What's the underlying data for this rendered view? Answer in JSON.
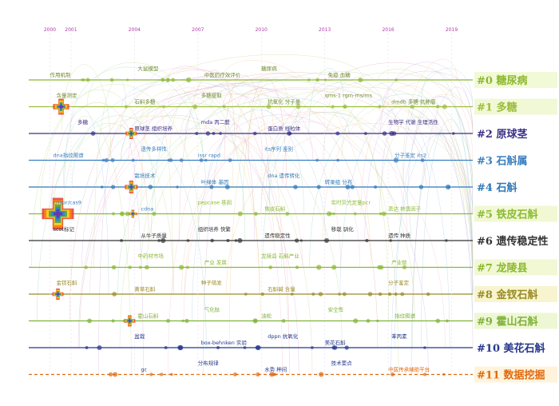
{
  "chart_data": {
    "type": "timeline",
    "years": [
      "2000",
      "2001",
      "2004",
      "2007",
      "2010",
      "2013",
      "2016",
      "2019"
    ],
    "clusters": [
      {
        "id": "#0",
        "label": "糖尿病",
        "color": "#8bb82f",
        "bg": "#f2f9d6"
      },
      {
        "id": "#1",
        "label": "多糖",
        "color": "#9cbe3c",
        "bg": "#f1f8d6"
      },
      {
        "id": "#2",
        "label": "原球茎",
        "color": "#3b2f86",
        "bg": "#ffffff"
      },
      {
        "id": "#3",
        "label": "石斛属",
        "color": "#3a7fbf",
        "bg": "#ffffff"
      },
      {
        "id": "#4",
        "label": "石斛",
        "color": "#2f78b7",
        "bg": "#ffffff"
      },
      {
        "id": "#5",
        "label": "铁皮石斛",
        "color": "#8bbb35",
        "bg": "#f1f8d3"
      },
      {
        "id": "#6",
        "label": "遗传稳定性",
        "color": "#333333",
        "bg": "#ffffff"
      },
      {
        "id": "#7",
        "label": "龙陵县",
        "color": "#8bb82f",
        "bg": "#f1f8d3"
      },
      {
        "id": "#8",
        "label": "金钗石斛",
        "color": "#9a8a24",
        "bg": "#f7f4cf"
      },
      {
        "id": "#9",
        "label": "霍山石斛",
        "color": "#7fb23a",
        "bg": "#eef7d4"
      },
      {
        "id": "#10",
        "label": "美花石斛",
        "color": "#25378b",
        "bg": "#ffffff"
      },
      {
        "id": "#11",
        "label": "数据挖掘",
        "color": "#e06a10",
        "bg": "#fff3dc"
      }
    ],
    "keywords": [
      {
        "row": 0,
        "x": "2000",
        "t": "作用机制",
        "c": "#6b8b2b"
      },
      {
        "row": 0,
        "x": "2004",
        "t": "大鼠模型",
        "c": "#6b8b2b"
      },
      {
        "row": 0,
        "x": "2007",
        "t": "中医药疗效评价",
        "c": "#6b8b2b"
      },
      {
        "row": 0,
        "x": "2010",
        "t": "糖尿病",
        "c": "#6b8b2b"
      },
      {
        "row": 0,
        "x": "2013",
        "t": "免疫 血糖",
        "c": "#6b8b2b"
      },
      {
        "row": 1,
        "x": "2000",
        "t": "含量测定",
        "c": "#6b8b2b"
      },
      {
        "row": 1,
        "x": "2004",
        "t": "石斛多糖",
        "c": "#6b8b2b"
      },
      {
        "row": 1,
        "x": "2007",
        "t": "多糖提取",
        "c": "#6b8b2b"
      },
      {
        "row": 1,
        "x": "2010",
        "t": "抗氧化 分子量",
        "c": "#6b8b2b"
      },
      {
        "row": 1,
        "x": "2013",
        "t": "qms-1 rgm-ms/ms",
        "c": "#6b8b2b"
      },
      {
        "row": 1,
        "x": "2016",
        "t": "dmdb 多糖 抗肿瘤",
        "c": "#6b8b2b"
      },
      {
        "row": 2,
        "x": "2001",
        "t": "多糖",
        "c": "#3b2f86"
      },
      {
        "row": 2,
        "x": "2004",
        "t": "原球茎 组织培养",
        "c": "#3b2f86"
      },
      {
        "row": 2,
        "x": "2007",
        "t": "mda 丙二醛",
        "c": "#3b2f86"
      },
      {
        "row": 2,
        "x": "2010",
        "t": "蛋白质 线粒体",
        "c": "#3b2f86"
      },
      {
        "row": 2,
        "x": "2016",
        "t": "生物学 代谢 生理活性",
        "c": "#3b2f86"
      },
      {
        "row": 3,
        "x": "2000",
        "t": "dna指纹图谱",
        "c": "#3a7fbf"
      },
      {
        "row": 3,
        "x": "2004",
        "t": "遗传多样性",
        "c": "#3a7fbf"
      },
      {
        "row": 3,
        "x": "2007",
        "t": "issr rapd",
        "c": "#3a7fbf"
      },
      {
        "row": 3,
        "x": "2010",
        "t": "its序列 鉴别",
        "c": "#3a7fbf"
      },
      {
        "row": 3,
        "x": "2016",
        "t": "分子鉴定 its2",
        "c": "#3a7fbf"
      },
      {
        "row": 4,
        "x": "2004",
        "t": "栽培技术",
        "c": "#2f78b7"
      },
      {
        "row": 4,
        "x": "2007",
        "t": "叶绿体 基因",
        "c": "#2f78b7"
      },
      {
        "row": 4,
        "x": "2010",
        "t": "dna 遗传转化",
        "c": "#2f78b7"
      },
      {
        "row": 4,
        "x": "2013",
        "t": "转录组 分布",
        "c": "#2f78b7"
      },
      {
        "row": 5,
        "x": "2000",
        "t": "crispr/cas9",
        "c": "#3a7fbf"
      },
      {
        "row": 5,
        "x": "2004",
        "t": "cdna",
        "c": "#3a7fbf"
      },
      {
        "row": 5,
        "x": "2007",
        "t": "pepcase 基因",
        "c": "#8bbb35"
      },
      {
        "row": 5,
        "x": "2010",
        "t": "铁皮石斛",
        "c": "#8bbb35"
      },
      {
        "row": 5,
        "x": "2013",
        "t": "实时荧光定量pcr",
        "c": "#8bbb35"
      },
      {
        "row": 5,
        "x": "2016",
        "t": "表达 转录因子",
        "c": "#8bbb35"
      },
      {
        "row": 6,
        "x": "2000",
        "t": "scot标记",
        "c": "#333333"
      },
      {
        "row": 6,
        "x": "2004",
        "t": "从牛子质量",
        "c": "#333333"
      },
      {
        "row": 6,
        "x": "2007",
        "t": "组织培养 快繁",
        "c": "#333333"
      },
      {
        "row": 6,
        "x": "2010",
        "t": "遗传稳定性",
        "c": "#333333"
      },
      {
        "row": 6,
        "x": "2013",
        "t": "移栽 驯化",
        "c": "#333333"
      },
      {
        "row": 6,
        "x": "2016",
        "t": "遗传 种质",
        "c": "#333333"
      },
      {
        "row": 7,
        "x": "2004",
        "t": "中药材市场",
        "c": "#8bb82f"
      },
      {
        "row": 7,
        "x": "2007",
        "t": "产业 发展",
        "c": "#8bb82f"
      },
      {
        "row": 7,
        "x": "2010",
        "t": "龙陵县 石斛产业",
        "c": "#8bb82f"
      },
      {
        "row": 7,
        "x": "2016",
        "t": "产业链",
        "c": "#8bb82f"
      },
      {
        "row": 8,
        "x": "2000",
        "t": "金钗石斛",
        "c": "#9a8a24"
      },
      {
        "row": 8,
        "x": "2004",
        "t": "黄草石斛",
        "c": "#9a8a24"
      },
      {
        "row": 8,
        "x": "2007",
        "t": "种子萌发",
        "c": "#9a8a24"
      },
      {
        "row": 8,
        "x": "2010",
        "t": "石斛碱 含量",
        "c": "#9a8a24"
      },
      {
        "row": 8,
        "x": "2016",
        "t": "分子鉴定",
        "c": "#9a8a24"
      },
      {
        "row": 9,
        "x": "2004",
        "t": "霍山石斛",
        "c": "#7fb23a"
      },
      {
        "row": 9,
        "x": "2007",
        "t": "气化肽",
        "c": "#7fb23a"
      },
      {
        "row": 9,
        "x": "2010",
        "t": "油松",
        "c": "#7fb23a"
      },
      {
        "row": 9,
        "x": "2013",
        "t": "安全性",
        "c": "#7fb23a"
      },
      {
        "row": 9,
        "x": "2016",
        "t": "指纹图谱",
        "c": "#7fb23a"
      },
      {
        "row": 10,
        "x": "2004",
        "t": "盆栽",
        "c": "#25378b"
      },
      {
        "row": 10,
        "x": "2007",
        "t": "box-behnken 实验",
        "c": "#25378b"
      },
      {
        "row": 10,
        "x": "2010",
        "t": "dppn 抗氧化",
        "c": "#25378b"
      },
      {
        "row": 10,
        "x": "2013",
        "t": "美花石斛",
        "c": "#25378b"
      },
      {
        "row": 10,
        "x": "2016",
        "t": "苯丙素",
        "c": "#25378b"
      },
      {
        "row": 11,
        "x": "2004",
        "t": "gc",
        "c": "#25378b"
      },
      {
        "row": 11,
        "x": "2007",
        "t": "分布规律",
        "c": "#25378b"
      },
      {
        "row": 11,
        "x": "2010",
        "t": "水势 种间",
        "c": "#25378b"
      },
      {
        "row": 11,
        "x": "2013",
        "t": "技术要点",
        "c": "#25378b"
      },
      {
        "row": 11,
        "x": "2016",
        "t": "中医传承辅助平台",
        "c": "#e06a10"
      }
    ]
  }
}
